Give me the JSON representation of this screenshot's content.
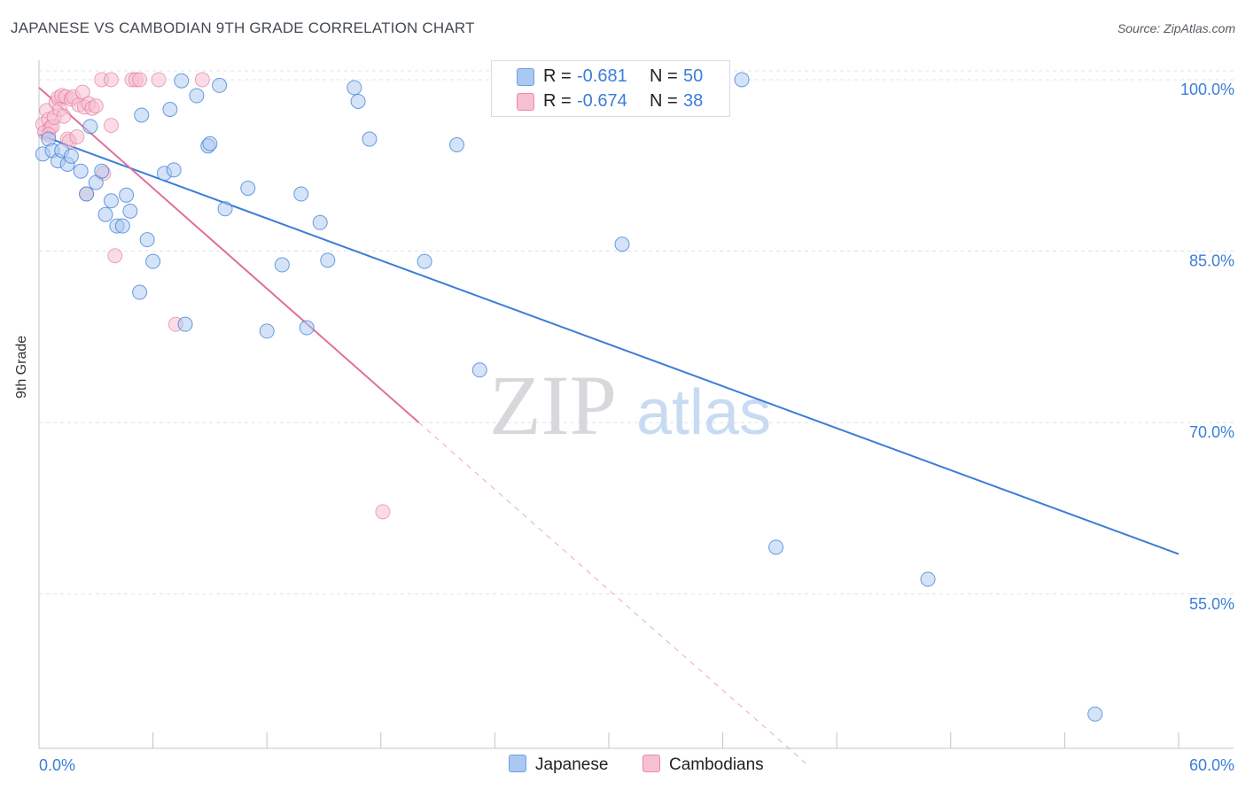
{
  "title": "JAPANESE VS CAMBODIAN 9TH GRADE CORRELATION CHART",
  "source": "Source: ZipAtlas.com",
  "watermark": {
    "zip": "ZIP",
    "atlas": "atlas"
  },
  "legend": {
    "rows": [
      {
        "r_label": "R =",
        "r_value": "-0.681",
        "n_label": "N =",
        "n_value": "50"
      },
      {
        "r_label": "R =",
        "r_value": "-0.674",
        "n_label": "N =",
        "n_value": "38"
      }
    ]
  },
  "bottom_legend": {
    "japanese": "Japanese",
    "cambodians": "Cambodians"
  },
  "chart_data": {
    "type": "scatter",
    "title": "JAPANESE VS CAMBODIAN 9TH GRADE CORRELATION CHART",
    "xlabel": "",
    "ylabel": "9th Grade",
    "xlim": [
      0,
      60
    ],
    "ylim": [
      41.5,
      101.7
    ],
    "x_tick_labels": [
      "0.0%",
      "60.0%"
    ],
    "y_ticks": [
      100,
      85,
      70,
      55
    ],
    "y_tick_labels": [
      "100.0%",
      "85.0%",
      "70.0%",
      "55.0%"
    ],
    "grid": true,
    "colors": {
      "japanese": "#3b7dd8",
      "japanese_fill": "#aac8f0",
      "cambodians": "#e0709a",
      "cambodians_fill": "#f7bfd2"
    },
    "series": [
      {
        "name": "Japanese",
        "points": [
          [
            0.2,
            93.5
          ],
          [
            0.5,
            94.8
          ],
          [
            0.7,
            93.8
          ],
          [
            1.0,
            92.9
          ],
          [
            1.2,
            93.8
          ],
          [
            1.5,
            92.6
          ],
          [
            1.7,
            93.3
          ],
          [
            2.2,
            92.0
          ],
          [
            2.5,
            90.0
          ],
          [
            2.7,
            95.9
          ],
          [
            3.0,
            91.0
          ],
          [
            3.3,
            92.0
          ],
          [
            3.5,
            88.2
          ],
          [
            3.8,
            89.4
          ],
          [
            4.1,
            87.2
          ],
          [
            4.4,
            87.2
          ],
          [
            4.6,
            89.9
          ],
          [
            4.8,
            88.5
          ],
          [
            5.3,
            81.4
          ],
          [
            5.4,
            96.9
          ],
          [
            5.7,
            86.0
          ],
          [
            6.0,
            84.1
          ],
          [
            6.6,
            91.8
          ],
          [
            6.9,
            97.4
          ],
          [
            7.1,
            92.1
          ],
          [
            7.5,
            99.9
          ],
          [
            7.7,
            78.6
          ],
          [
            8.3,
            98.6
          ],
          [
            8.9,
            94.2
          ],
          [
            9.0,
            94.4
          ],
          [
            9.5,
            99.5
          ],
          [
            9.8,
            88.7
          ],
          [
            11.0,
            90.5
          ],
          [
            12.0,
            78.0
          ],
          [
            12.8,
            83.8
          ],
          [
            13.8,
            90.0
          ],
          [
            14.1,
            78.3
          ],
          [
            14.8,
            87.5
          ],
          [
            15.2,
            84.2
          ],
          [
            16.6,
            99.3
          ],
          [
            16.8,
            98.1
          ],
          [
            17.4,
            94.8
          ],
          [
            20.3,
            84.1
          ],
          [
            22.0,
            94.3
          ],
          [
            23.2,
            74.6
          ],
          [
            30.7,
            85.6
          ],
          [
            37.0,
            100.0
          ],
          [
            38.8,
            59.1
          ],
          [
            46.8,
            56.3
          ],
          [
            55.6,
            44.5
          ]
        ]
      },
      {
        "name": "Cambodians",
        "points": [
          [
            0.2,
            96.1
          ],
          [
            0.3,
            95.4
          ],
          [
            0.4,
            97.3
          ],
          [
            0.5,
            96.5
          ],
          [
            0.6,
            95.8
          ],
          [
            0.7,
            95.9
          ],
          [
            0.8,
            96.7
          ],
          [
            0.9,
            98.0
          ],
          [
            1.0,
            98.4
          ],
          [
            1.1,
            97.4
          ],
          [
            1.2,
            98.6
          ],
          [
            1.3,
            96.8
          ],
          [
            1.4,
            98.5
          ],
          [
            1.5,
            94.8
          ],
          [
            1.6,
            94.6
          ],
          [
            1.7,
            98.3
          ],
          [
            1.8,
            98.5
          ],
          [
            2.0,
            95.0
          ],
          [
            2.1,
            97.8
          ],
          [
            2.3,
            98.9
          ],
          [
            2.4,
            97.6
          ],
          [
            2.5,
            90.0
          ],
          [
            2.6,
            97.9
          ],
          [
            2.8,
            97.5
          ],
          [
            3.0,
            97.7
          ],
          [
            3.3,
            100.0
          ],
          [
            3.4,
            91.8
          ],
          [
            3.8,
            100.0
          ],
          [
            3.8,
            96.0
          ],
          [
            4.0,
            84.6
          ],
          [
            4.9,
            100.0
          ],
          [
            5.1,
            100.0
          ],
          [
            5.3,
            100.0
          ],
          [
            6.3,
            100.0
          ],
          [
            7.2,
            78.6
          ],
          [
            8.6,
            100.0
          ],
          [
            18.1,
            62.2
          ],
          [
            0.5,
            95.2
          ]
        ]
      }
    ],
    "trend_lines": [
      {
        "series": "Japanese",
        "from": [
          0.0,
          95.2
        ],
        "to": [
          60.0,
          58.5
        ],
        "style": "solid"
      },
      {
        "series": "Cambodians",
        "from": [
          0.0,
          99.3
        ],
        "to": [
          20.0,
          70.0
        ],
        "style": "solid"
      },
      {
        "series": "Cambodians",
        "from": [
          20.0,
          70.0
        ],
        "to": [
          40.5,
          40.0
        ],
        "style": "dashed"
      }
    ]
  }
}
